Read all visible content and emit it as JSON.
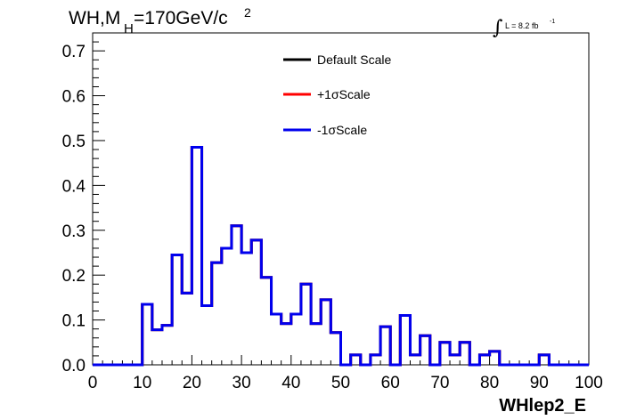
{
  "chart_data": {
    "type": "line",
    "title": "WH,M_H=170GeV/c^2",
    "title_parts": {
      "main": "WH,M",
      "sub": "H",
      "rest": "=170GeV/c",
      "sup": "2"
    },
    "lumi": {
      "integral_sign": "∫",
      "text": "L = 8.2 fb",
      "sup": "-1"
    },
    "xlabel": "WHlep2_E",
    "ylabel": "",
    "xlim": [
      0,
      100
    ],
    "ylim": [
      0,
      0.74
    ],
    "x_ticks": [
      0,
      10,
      20,
      30,
      40,
      50,
      60,
      70,
      80,
      90,
      100
    ],
    "x_tick_labels": [
      "0",
      "10",
      "20",
      "30",
      "40",
      "50",
      "60",
      "70",
      "80",
      "90",
      "100"
    ],
    "y_ticks": [
      0.0,
      0.1,
      0.2,
      0.3,
      0.4,
      0.5,
      0.6,
      0.7
    ],
    "y_tick_labels": [
      "0.0",
      "0.1",
      "0.2",
      "0.3",
      "0.4",
      "0.5",
      "0.6",
      "0.7"
    ],
    "bin_edges": [
      0,
      2,
      4,
      6,
      8,
      10,
      12,
      14,
      16,
      18,
      20,
      22,
      24,
      26,
      28,
      30,
      32,
      34,
      36,
      38,
      40,
      42,
      44,
      46,
      48,
      50,
      52,
      54,
      56,
      58,
      60,
      62,
      64,
      66,
      68,
      70,
      72,
      74,
      76,
      78,
      80,
      82,
      84,
      86,
      88,
      90,
      92,
      94,
      96,
      98,
      100
    ],
    "series": [
      {
        "name": "Default Scale",
        "color": "#000000",
        "values": [
          0,
          0,
          0,
          0,
          0,
          0.135,
          0.078,
          0.088,
          0.245,
          0.16,
          0.485,
          0.132,
          0.228,
          0.26,
          0.31,
          0.25,
          0.278,
          0.195,
          0.113,
          0.092,
          0.113,
          0.18,
          0.092,
          0.145,
          0.072,
          0,
          0.022,
          0,
          0.022,
          0.085,
          0,
          0.11,
          0.022,
          0.065,
          0,
          0.05,
          0.022,
          0.05,
          0,
          0.022,
          0.03,
          0,
          0,
          0,
          0,
          0.022,
          0,
          0,
          0,
          0,
          0
        ]
      },
      {
        "name": "+1σScale",
        "color": "#ff0000",
        "values": [
          0,
          0,
          0,
          0,
          0,
          0.135,
          0.078,
          0.088,
          0.245,
          0.16,
          0.485,
          0.132,
          0.228,
          0.26,
          0.31,
          0.25,
          0.278,
          0.195,
          0.113,
          0.092,
          0.113,
          0.18,
          0.092,
          0.145,
          0.072,
          0,
          0.022,
          0,
          0.022,
          0.085,
          0,
          0.11,
          0.022,
          0.065,
          0,
          0.05,
          0.022,
          0.05,
          0,
          0.022,
          0.03,
          0,
          0,
          0,
          0,
          0.022,
          0,
          0,
          0,
          0,
          0
        ]
      },
      {
        "name": "-1σScale",
        "color": "#0000ee",
        "values": [
          0,
          0,
          0,
          0,
          0,
          0.135,
          0.078,
          0.088,
          0.245,
          0.16,
          0.485,
          0.132,
          0.228,
          0.26,
          0.31,
          0.25,
          0.278,
          0.195,
          0.113,
          0.092,
          0.113,
          0.18,
          0.092,
          0.145,
          0.072,
          0,
          0.022,
          0,
          0.022,
          0.085,
          0,
          0.11,
          0.022,
          0.065,
          0,
          0.05,
          0.022,
          0.05,
          0,
          0.022,
          0.03,
          0,
          0,
          0,
          0,
          0.022,
          0,
          0,
          0,
          0,
          0
        ]
      }
    ],
    "legend": {
      "placement": "top-center",
      "entries": [
        "Default Scale",
        "+1σScale",
        "-1σScale"
      ]
    },
    "grid": false
  }
}
